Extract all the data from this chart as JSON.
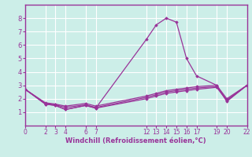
{
  "xlabel": "Windchill (Refroidissement éolien,°C)",
  "ylabel": "",
  "background_color": "#cceee8",
  "line_color": "#993399",
  "grid_color": "#ffffff",
  "axes_bg": "#cceee8",
  "xlim": [
    0,
    22
  ],
  "ylim": [
    0,
    9
  ],
  "xticks": [
    0,
    2,
    3,
    4,
    6,
    7,
    12,
    13,
    14,
    15,
    16,
    17,
    19,
    20,
    22
  ],
  "yticks": [
    1,
    2,
    3,
    4,
    5,
    6,
    7,
    8
  ],
  "lines": [
    {
      "x": [
        0,
        2,
        3,
        4,
        6,
        7,
        12,
        13,
        14,
        15,
        16,
        17,
        19,
        20,
        22
      ],
      "y": [
        2.7,
        1.6,
        1.5,
        1.2,
        1.5,
        1.3,
        6.4,
        7.5,
        8.0,
        7.7,
        5.0,
        3.7,
        3.0,
        1.8,
        3.0
      ]
    },
    {
      "x": [
        0,
        2,
        3,
        4,
        6,
        7,
        12,
        13,
        14,
        15,
        16,
        17,
        19,
        20,
        22
      ],
      "y": [
        2.7,
        1.6,
        1.5,
        1.2,
        1.5,
        1.3,
        2.0,
        2.2,
        2.4,
        2.5,
        2.6,
        2.7,
        2.85,
        1.85,
        3.0
      ]
    },
    {
      "x": [
        0,
        2,
        3,
        4,
        6,
        7,
        12,
        13,
        14,
        15,
        16,
        17,
        19,
        20,
        22
      ],
      "y": [
        2.7,
        1.65,
        1.55,
        1.35,
        1.55,
        1.35,
        2.1,
        2.3,
        2.5,
        2.6,
        2.7,
        2.8,
        2.9,
        1.9,
        3.0
      ]
    },
    {
      "x": [
        0,
        2,
        3,
        4,
        6,
        7,
        12,
        13,
        14,
        15,
        16,
        17,
        19,
        20,
        22
      ],
      "y": [
        2.7,
        1.7,
        1.6,
        1.45,
        1.65,
        1.45,
        2.2,
        2.4,
        2.6,
        2.7,
        2.8,
        2.9,
        3.0,
        2.0,
        3.0
      ]
    }
  ]
}
